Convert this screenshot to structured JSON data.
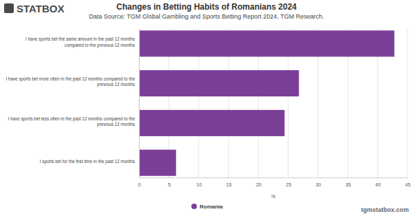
{
  "chart_data": {
    "type": "bar",
    "orientation": "horizontal",
    "logo": "STATBOX",
    "title": "Changes in Betting Habits of Romanians 2024",
    "subtitle": "Data Source: TGM Global Gambling and Sports Betting Report 2024, TGM Research.",
    "watermark": "tgmstatbox.com",
    "x_label": "%",
    "categories": [
      "I have sports bet the same amount in the past 12 months compared to the previous 12 months",
      "I have sports bet more often in the past 12 months compared to the previous 12 months",
      "I have sports bet less often in the past 12 months compared to the previous 12 months",
      "I sports bet for the first time in the past 12 months"
    ],
    "series": [
      {
        "name": "Romania",
        "color": "#7b3f98",
        "values": [
          42.8,
          26.8,
          24.4,
          6.2
        ]
      }
    ],
    "xlim": [
      0,
      45
    ],
    "xticks": [
      0,
      5,
      10,
      15,
      20,
      25,
      30,
      35,
      40,
      45
    ],
    "grid": true,
    "legend": "bottom"
  }
}
